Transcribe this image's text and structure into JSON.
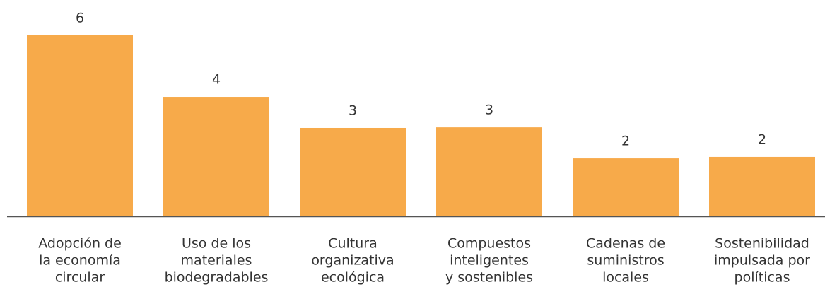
{
  "chart_data": {
    "type": "bar",
    "categories": [
      [
        "Adopción de",
        "la economía",
        "circular"
      ],
      [
        "Uso de los",
        "materiales",
        "biodegradables"
      ],
      [
        "Cultura",
        "organizativa",
        "ecológica"
      ],
      [
        "Compuestos",
        "inteligentes",
        "y sostenibles"
      ],
      [
        "Cadenas de",
        "suministros",
        "locales"
      ],
      [
        "Sostenibilidad",
        "impulsada por",
        "políticas"
      ]
    ],
    "values": [
      6,
      3.96,
      2.93,
      2.95,
      1.92,
      1.97
    ],
    "value_labels": [
      "6",
      "4",
      "3",
      "3",
      "2",
      "2"
    ],
    "color": "#f7aa4a"
  }
}
